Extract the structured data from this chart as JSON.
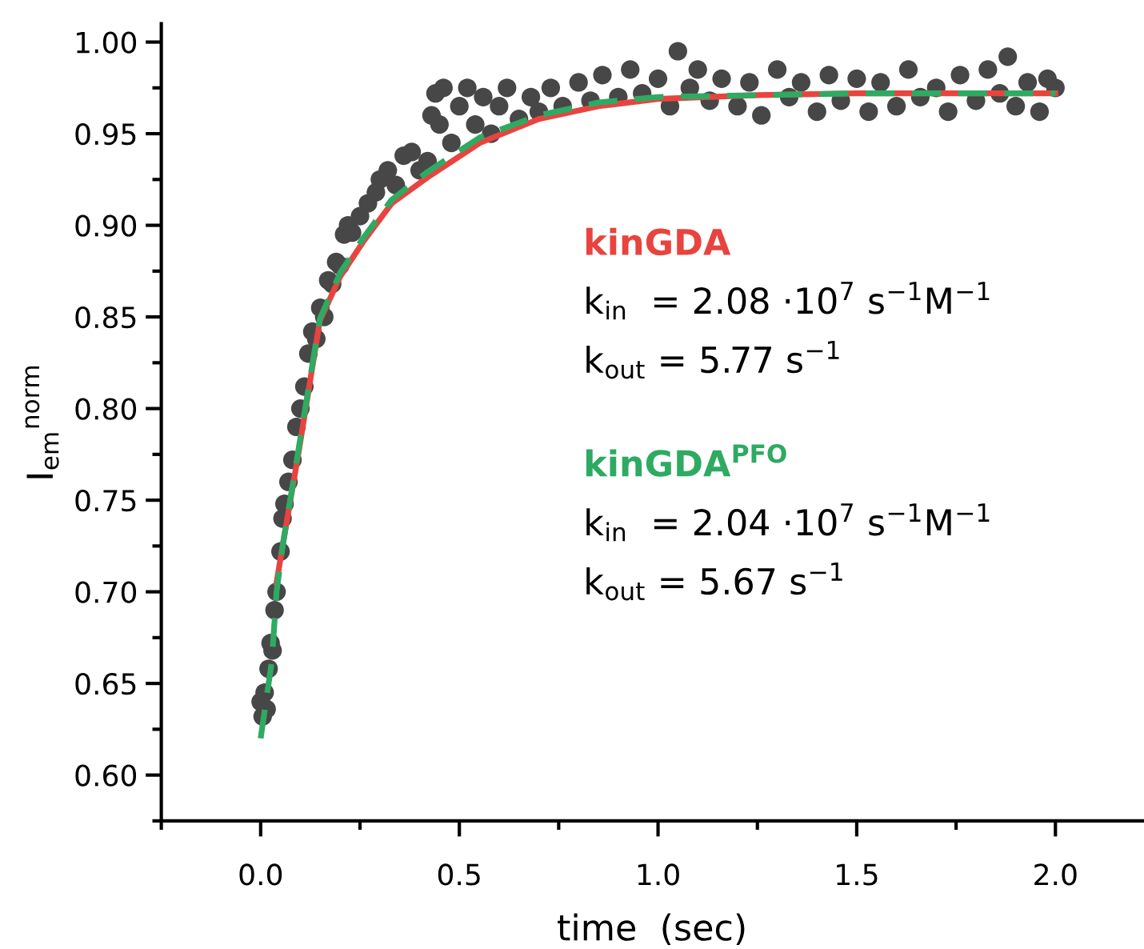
{
  "chart_data": {
    "type": "scatter",
    "xlabel": "time  (sec)",
    "ylabel": "I$_{em}$$^{norm}$",
    "xlim": [
      -0.25,
      2.22
    ],
    "ylim": [
      0.575,
      1.01
    ],
    "xticks": [
      {
        "value": 0,
        "label": "0.0"
      },
      {
        "value": 0.5,
        "label": "0.5"
      },
      {
        "value": 1,
        "label": "1.0"
      },
      {
        "value": 1.5,
        "label": "1.5"
      },
      {
        "value": 2,
        "label": "2.0"
      }
    ],
    "yticks": [
      {
        "value": 0.6,
        "label": "0.60"
      },
      {
        "value": 0.65,
        "label": "0.65"
      },
      {
        "value": 0.7,
        "label": "0.70"
      },
      {
        "value": 0.75,
        "label": "0.75"
      },
      {
        "value": 0.8,
        "label": "0.80"
      },
      {
        "value": 0.85,
        "label": "0.85"
      },
      {
        "value": 0.9,
        "label": "0.90"
      },
      {
        "value": 0.95,
        "label": "0.95"
      },
      {
        "value": 1.0,
        "label": "1.00"
      }
    ],
    "grid": false,
    "legend": false,
    "series": [
      {
        "color": "#474747",
        "marker": "circle",
        "x": [
          0.0,
          0.005,
          0.01,
          0.015,
          0.02,
          0.025,
          0.03,
          0.035,
          0.04,
          0.05,
          0.055,
          0.06,
          0.07,
          0.08,
          0.09,
          0.1,
          0.11,
          0.12,
          0.13,
          0.14,
          0.15,
          0.16,
          0.17,
          0.18,
          0.19,
          0.2,
          0.21,
          0.22,
          0.23,
          0.25,
          0.27,
          0.29,
          0.3,
          0.32,
          0.34,
          0.36,
          0.38,
          0.4,
          0.42,
          0.43,
          0.44,
          0.45,
          0.46,
          0.48,
          0.5,
          0.52,
          0.54,
          0.56,
          0.58,
          0.6,
          0.62,
          0.65,
          0.68,
          0.7,
          0.73,
          0.76,
          0.8,
          0.83,
          0.86,
          0.9,
          0.93,
          0.96,
          1.0,
          1.03,
          1.05,
          1.08,
          1.1,
          1.13,
          1.16,
          1.2,
          1.23,
          1.26,
          1.3,
          1.33,
          1.36,
          1.4,
          1.43,
          1.46,
          1.5,
          1.53,
          1.56,
          1.6,
          1.63,
          1.66,
          1.7,
          1.73,
          1.76,
          1.8,
          1.83,
          1.86,
          1.88,
          1.9,
          1.93,
          1.96,
          1.98,
          2.0
        ],
        "values": [
          0.64,
          0.632,
          0.645,
          0.636,
          0.658,
          0.672,
          0.668,
          0.69,
          0.7,
          0.722,
          0.74,
          0.748,
          0.76,
          0.772,
          0.79,
          0.8,
          0.812,
          0.83,
          0.842,
          0.838,
          0.855,
          0.85,
          0.87,
          0.868,
          0.88,
          0.878,
          0.895,
          0.9,
          0.896,
          0.905,
          0.912,
          0.918,
          0.925,
          0.93,
          0.922,
          0.938,
          0.94,
          0.93,
          0.935,
          0.96,
          0.972,
          0.955,
          0.975,
          0.945,
          0.965,
          0.975,
          0.955,
          0.97,
          0.95,
          0.965,
          0.975,
          0.958,
          0.97,
          0.962,
          0.975,
          0.965,
          0.978,
          0.968,
          0.982,
          0.97,
          0.985,
          0.972,
          0.98,
          0.965,
          0.995,
          0.975,
          0.985,
          0.968,
          0.98,
          0.965,
          0.978,
          0.96,
          0.985,
          0.97,
          0.978,
          0.962,
          0.982,
          0.968,
          0.98,
          0.962,
          0.978,
          0.965,
          0.985,
          0.97,
          0.975,
          0.962,
          0.982,
          0.968,
          0.985,
          0.972,
          0.992,
          0.965,
          0.978,
          0.962,
          0.98,
          0.975
        ]
      },
      {
        "type": "line",
        "name": "kinGDA",
        "color": "#e8443f",
        "line_style": "solid",
        "marker": "none",
        "x": [
          0.04,
          0.056,
          0.097,
          0.149,
          0.2,
          0.258,
          0.33,
          0.419,
          0.552,
          0.7,
          0.85,
          1.0,
          1.25,
          1.5,
          1.75,
          2.0
        ],
        "values": [
          0.705,
          0.726,
          0.778,
          0.848,
          0.872,
          0.891,
          0.912,
          0.926,
          0.945,
          0.958,
          0.965,
          0.969,
          0.971,
          0.972,
          0.972,
          0.972
        ]
      },
      {
        "type": "line",
        "name": "kinGDA$^{PFO}$",
        "color": "#2eaa63",
        "line_style": "dashed",
        "marker": "none",
        "x": [
          0,
          0.028,
          0.04,
          0.056,
          0.097,
          0.149,
          0.2,
          0.258,
          0.33,
          0.419,
          0.552,
          0.7,
          0.85,
          1.0,
          1.25,
          1.5,
          1.75,
          2.0
        ],
        "values": [
          0.62,
          0.662,
          0.7,
          0.726,
          0.78,
          0.849,
          0.874,
          0.893,
          0.914,
          0.929,
          0.948,
          0.96,
          0.967,
          0.97,
          0.971,
          0.972,
          0.972,
          0.972
        ]
      }
    ],
    "annotations": [
      "k$_{in}$  = 2.08 ·10$^{7}$ s$^{−1}$M$^{−1}$",
      "k$_{out}$ = 5.77 s$^{−1}$",
      "k$_{in}$  = 2.04 ·10$^{7}$ s$^{−1}$M$^{−1}$",
      "k$_{out}$ = 5.67 s$^{−1}$"
    ]
  }
}
